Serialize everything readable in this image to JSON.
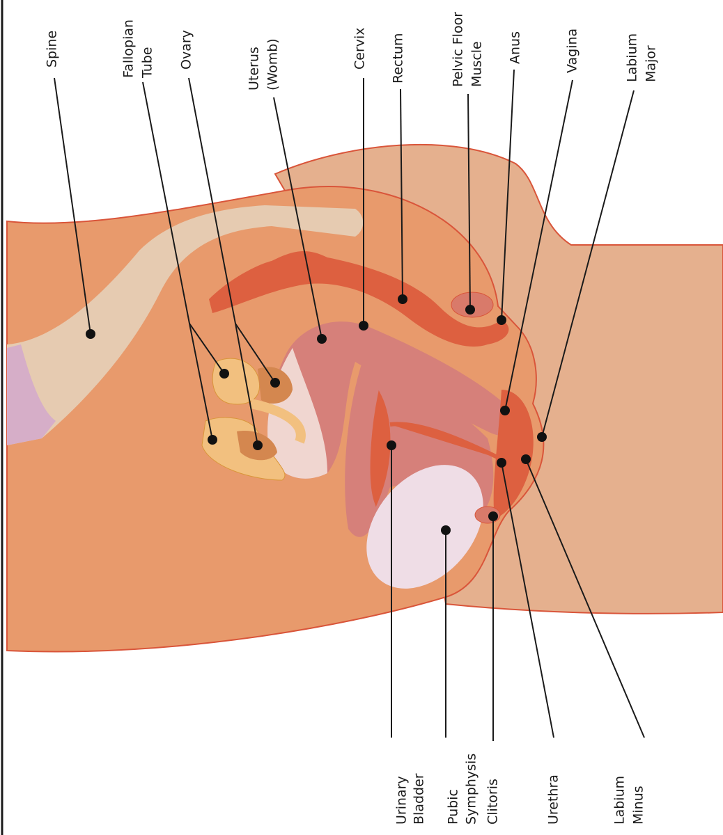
{
  "labels": [
    {
      "lines": [
        "Spine"
      ]
    },
    {
      "lines": [
        "Fallopian",
        "Tube"
      ]
    },
    {
      "lines": [
        "Ovary"
      ]
    },
    {
      "lines": [
        "Uterus",
        "(Womb)"
      ]
    },
    {
      "lines": [
        "Cervix"
      ]
    },
    {
      "lines": [
        "Rectum"
      ]
    },
    {
      "lines": [
        "Pelvic Floor",
        "Muscle"
      ]
    },
    {
      "lines": [
        "Anus"
      ]
    },
    {
      "lines": [
        "Vagina"
      ]
    },
    {
      "lines": [
        "Labium",
        "Major"
      ]
    },
    {
      "lines": [
        "Urinary",
        "Bladder"
      ]
    },
    {
      "lines": [
        "Pubic",
        "Symphysis"
      ]
    },
    {
      "lines": [
        "Clitoris"
      ]
    },
    {
      "lines": [
        "Urethra"
      ]
    },
    {
      "lines": [
        "Labium",
        "Minus"
      ]
    }
  ]
}
